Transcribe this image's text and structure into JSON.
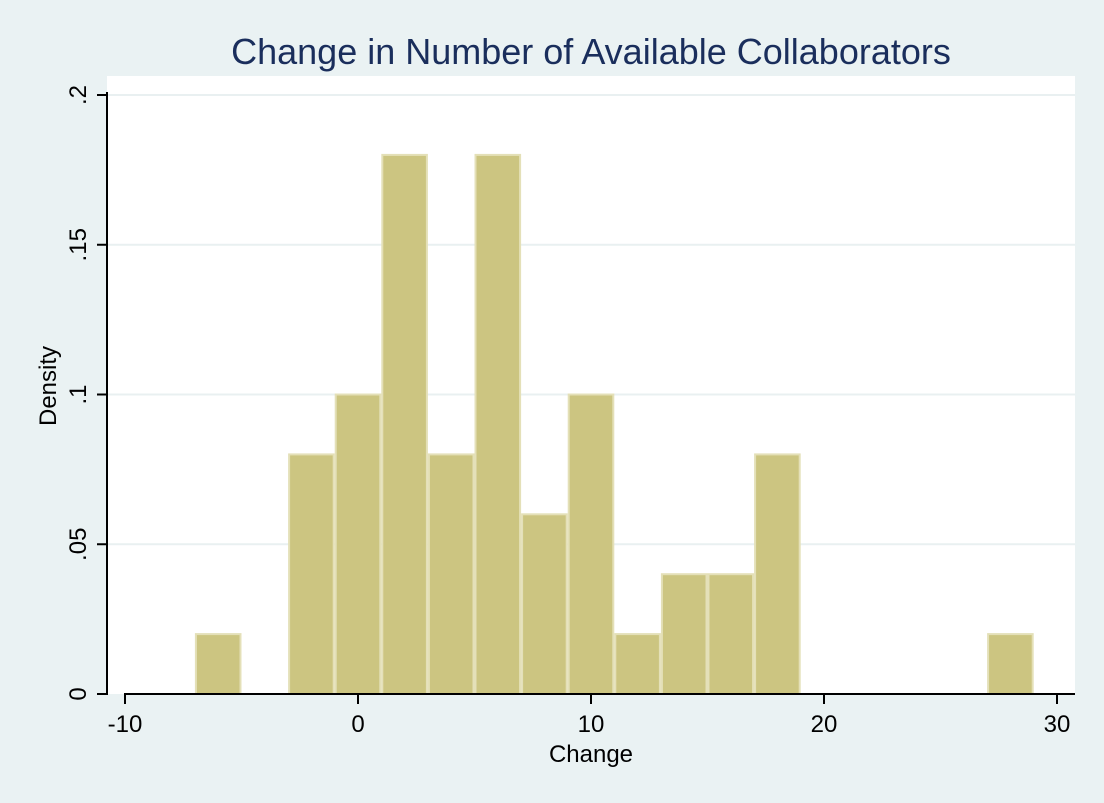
{
  "chart_data": {
    "type": "bar",
    "title": "Change in Number of Available Collaborators",
    "xlabel": "Change",
    "ylabel": "Density",
    "xlim": [
      -10,
      30
    ],
    "ylim": [
      0,
      0.2
    ],
    "x_ticks": [
      -10,
      0,
      10,
      20,
      30
    ],
    "x_tick_labels": [
      "-10",
      "0",
      "10",
      "20",
      "30"
    ],
    "y_ticks": [
      0,
      0.05,
      0.1,
      0.15,
      0.2
    ],
    "y_tick_labels": [
      "0",
      ".05",
      ".1",
      ".15",
      ".2"
    ],
    "grid": true,
    "bins": [
      {
        "x0": -7,
        "x1": -5,
        "density": 0.02
      },
      {
        "x0": -3,
        "x1": -1,
        "density": 0.08
      },
      {
        "x0": -1,
        "x1": 1,
        "density": 0.1
      },
      {
        "x0": 1,
        "x1": 3,
        "density": 0.18
      },
      {
        "x0": 3,
        "x1": 5,
        "density": 0.08
      },
      {
        "x0": 5,
        "x1": 7,
        "density": 0.18
      },
      {
        "x0": 7,
        "x1": 9,
        "density": 0.06
      },
      {
        "x0": 9,
        "x1": 11,
        "density": 0.1
      },
      {
        "x0": 11,
        "x1": 13,
        "density": 0.02
      },
      {
        "x0": 13,
        "x1": 15,
        "density": 0.04
      },
      {
        "x0": 15,
        "x1": 17,
        "density": 0.04
      },
      {
        "x0": 17,
        "x1": 19,
        "density": 0.08
      },
      {
        "x0": 27,
        "x1": 29,
        "density": 0.02
      }
    ],
    "colors": {
      "bar_fill": "#ccc581",
      "bar_stroke": "#e4e0b8",
      "page_background": "#eaf2f3",
      "plot_background": "#ffffff",
      "grid": "#e9f0f1",
      "title": "#1a2e5c"
    }
  }
}
